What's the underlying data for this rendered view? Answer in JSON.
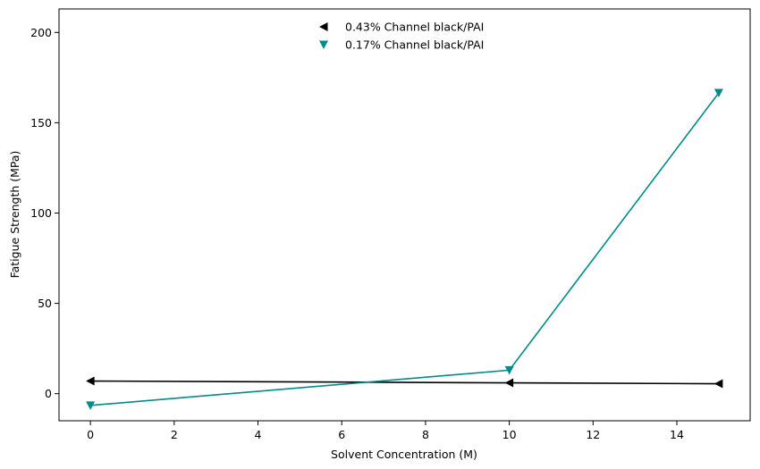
{
  "chart_data": {
    "type": "line",
    "xlabel": "Solvent Concentration (M)",
    "ylabel": "Fatigue Strength (MPa)",
    "xlim": [
      -0.75,
      15.75
    ],
    "ylim": [
      -15,
      213
    ],
    "xticks": [
      0,
      2,
      4,
      6,
      8,
      10,
      12,
      14
    ],
    "yticks": [
      0,
      50,
      100,
      150,
      200
    ],
    "grid": false,
    "legend_position": "top-center",
    "series": [
      {
        "name": "0.43% Channel black/PAI",
        "color": "#000000",
        "marker": "triangle-left",
        "x": [
          0,
          10,
          15
        ],
        "y": [
          7,
          6,
          5.5
        ]
      },
      {
        "name": "0.17% Channel black/PAI",
        "color": "#008b8b",
        "marker": "triangle-down",
        "x": [
          0,
          10,
          15
        ],
        "y": [
          -6.5,
          13,
          166.5
        ]
      }
    ]
  }
}
